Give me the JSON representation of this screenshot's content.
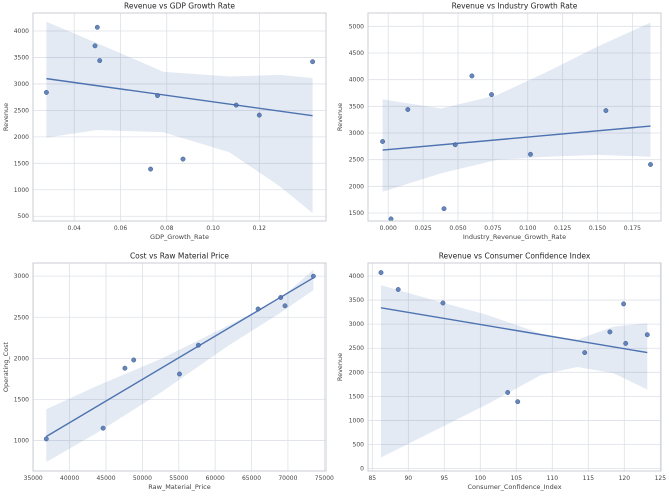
{
  "figure": {
    "background": "#ffffff",
    "colors": {
      "point": "#4c72b0",
      "point_edge": "#3d5c8f",
      "line": "#4c72b0",
      "band": "#4c72b0",
      "band_opacity": 0.15,
      "grid": "#dde1e8",
      "spine": "#c9cdd6",
      "title_text": "#262626",
      "tick_text": "#444444"
    }
  },
  "chart_data": [
    {
      "type": "scatter",
      "title": "Revenue vs GDP Growth Rate",
      "xlabel": "GDP_Growth_Rate",
      "ylabel": "Revenue",
      "xlim": [
        0.0222,
        0.1488
      ],
      "ylim": [
        410,
        4340
      ],
      "xticks": [
        0.04,
        0.06,
        0.08,
        0.1,
        0.12
      ],
      "xtick_labels": [
        "0.04",
        "0.06",
        "0.08",
        "0.10",
        "0.12"
      ],
      "yticks": [
        500,
        1000,
        1500,
        2000,
        2500,
        3000,
        3500,
        4000
      ],
      "ytick_labels": [
        "500",
        "1000",
        "1500",
        "2000",
        "2500",
        "3000",
        "3500",
        "4000"
      ],
      "grid": true,
      "points": [
        [
          0.028,
          2840
        ],
        [
          0.05,
          4070
        ],
        [
          0.049,
          3720
        ],
        [
          0.051,
          3440
        ],
        [
          0.076,
          2780
        ],
        [
          0.073,
          1390
        ],
        [
          0.087,
          1580
        ],
        [
          0.11,
          2600
        ],
        [
          0.12,
          2410
        ],
        [
          0.143,
          3420
        ]
      ],
      "regression_line": [
        [
          0.028,
          3100
        ],
        [
          0.143,
          2400
        ]
      ],
      "confidence_band": {
        "x": [
          0.028,
          0.05,
          0.0785,
          0.107,
          0.129,
          0.143
        ],
        "upper": [
          4175,
          3770,
          3230,
          3140,
          3170,
          3110
        ],
        "lower": [
          1985,
          2130,
          2085,
          1710,
          1060,
          560
        ]
      }
    },
    {
      "type": "scatter",
      "title": "Revenue vs Industry Growth Rate",
      "xlabel": "Industry_Revenue_Growth_Rate",
      "ylabel": "Revenue",
      "xlim": [
        -0.0145,
        0.1955
      ],
      "ylim": [
        1350,
        5250
      ],
      "xticks": [
        0.0,
        0.025,
        0.05,
        0.075,
        0.1,
        0.125,
        0.15,
        0.175
      ],
      "xtick_labels": [
        "0.000",
        "0.025",
        "0.050",
        "0.075",
        "0.100",
        "0.125",
        "0.150",
        "0.175"
      ],
      "yticks": [
        1500,
        2000,
        2500,
        3000,
        3500,
        4000,
        4500,
        5000
      ],
      "ytick_labels": [
        "1500",
        "2000",
        "2500",
        "3000",
        "3500",
        "4000",
        "4500",
        "5000"
      ],
      "grid": true,
      "points": [
        [
          -0.004,
          2840
        ],
        [
          0.002,
          1390
        ],
        [
          0.014,
          3440
        ],
        [
          0.04,
          1580
        ],
        [
          0.048,
          2780
        ],
        [
          0.06,
          4070
        ],
        [
          0.074,
          3720
        ],
        [
          0.102,
          2600
        ],
        [
          0.156,
          3420
        ],
        [
          0.188,
          2410
        ]
      ],
      "regression_line": [
        [
          -0.004,
          2680
        ],
        [
          0.188,
          3130
        ]
      ],
      "confidence_band": {
        "x": [
          -0.004,
          0.038,
          0.078,
          0.114,
          0.15,
          0.188
        ],
        "upper": [
          3630,
          3460,
          3710,
          4150,
          4620,
          5070
        ],
        "lower": [
          1900,
          2245,
          2495,
          2555,
          2590,
          2555
        ]
      }
    },
    {
      "type": "scatter",
      "title": "Cost vs Raw Material Price",
      "xlabel": "Raw_Material_Price",
      "ylabel": "Operating_Cost",
      "xlim": [
        34970,
        75230
      ],
      "ylim": [
        630,
        3160
      ],
      "xticks": [
        35000,
        40000,
        45000,
        50000,
        55000,
        60000,
        65000,
        70000,
        75000
      ],
      "xtick_labels": [
        "35000",
        "40000",
        "45000",
        "50000",
        "55000",
        "60000",
        "65000",
        "70000",
        "75000"
      ],
      "yticks": [
        1000,
        1500,
        2000,
        2500,
        3000
      ],
      "ytick_labels": [
        "1000",
        "1500",
        "2000",
        "2500",
        "3000"
      ],
      "grid": true,
      "points": [
        [
          36800,
          1020
        ],
        [
          44600,
          1150
        ],
        [
          47600,
          1880
        ],
        [
          48800,
          1980
        ],
        [
          55100,
          1810
        ],
        [
          57700,
          2160
        ],
        [
          65900,
          2600
        ],
        [
          69000,
          2740
        ],
        [
          69600,
          2640
        ],
        [
          73500,
          3000
        ]
      ],
      "regression_line": [
        [
          36800,
          1050
        ],
        [
          73500,
          2980
        ]
      ],
      "confidence_band": {
        "x": [
          36800,
          43500,
          52700,
          61900,
          68800,
          73500
        ],
        "upper": [
          1380,
          1655,
          2000,
          2405,
          2715,
          3080
        ],
        "lower": [
          740,
          1080,
          1595,
          2160,
          2545,
          2830
        ]
      }
    },
    {
      "type": "scatter",
      "title": "Revenue vs Consumer Confidence Index",
      "xlabel": "Consumer_Confidence_Index",
      "ylabel": "Revenue",
      "xlim": [
        84.4,
        125.1
      ],
      "ylim": [
        -50,
        4270
      ],
      "xticks": [
        85,
        90,
        95,
        100,
        105,
        110,
        115,
        120,
        125
      ],
      "xtick_labels": [
        "85",
        "90",
        "95",
        "100",
        "105",
        "110",
        "115",
        "120",
        "125"
      ],
      "yticks": [
        0,
        500,
        1000,
        1500,
        2000,
        2500,
        3000,
        3500,
        4000
      ],
      "ytick_labels": [
        "0",
        "500",
        "1000",
        "1500",
        "2000",
        "2500",
        "3000",
        "3500",
        "4000"
      ],
      "grid": true,
      "points": [
        [
          86.2,
          4070
        ],
        [
          88.6,
          3720
        ],
        [
          94.8,
          3440
        ],
        [
          103.8,
          1580
        ],
        [
          105.2,
          1390
        ],
        [
          114.5,
          2410
        ],
        [
          118.0,
          2840
        ],
        [
          119.9,
          3420
        ],
        [
          120.2,
          2600
        ],
        [
          123.2,
          2780
        ]
      ],
      "regression_line": [
        [
          86.2,
          3340
        ],
        [
          123.2,
          2410
        ]
      ],
      "confidence_band": {
        "x": [
          86.2,
          93.0,
          101.0,
          108.5,
          113.5,
          118.5,
          123.2
        ],
        "upper": [
          3810,
          3520,
          3190,
          2800,
          2680,
          2950,
          3020
        ],
        "lower": [
          230,
          740,
          1340,
          1950,
          2110,
          1980,
          1640
        ]
      }
    }
  ]
}
